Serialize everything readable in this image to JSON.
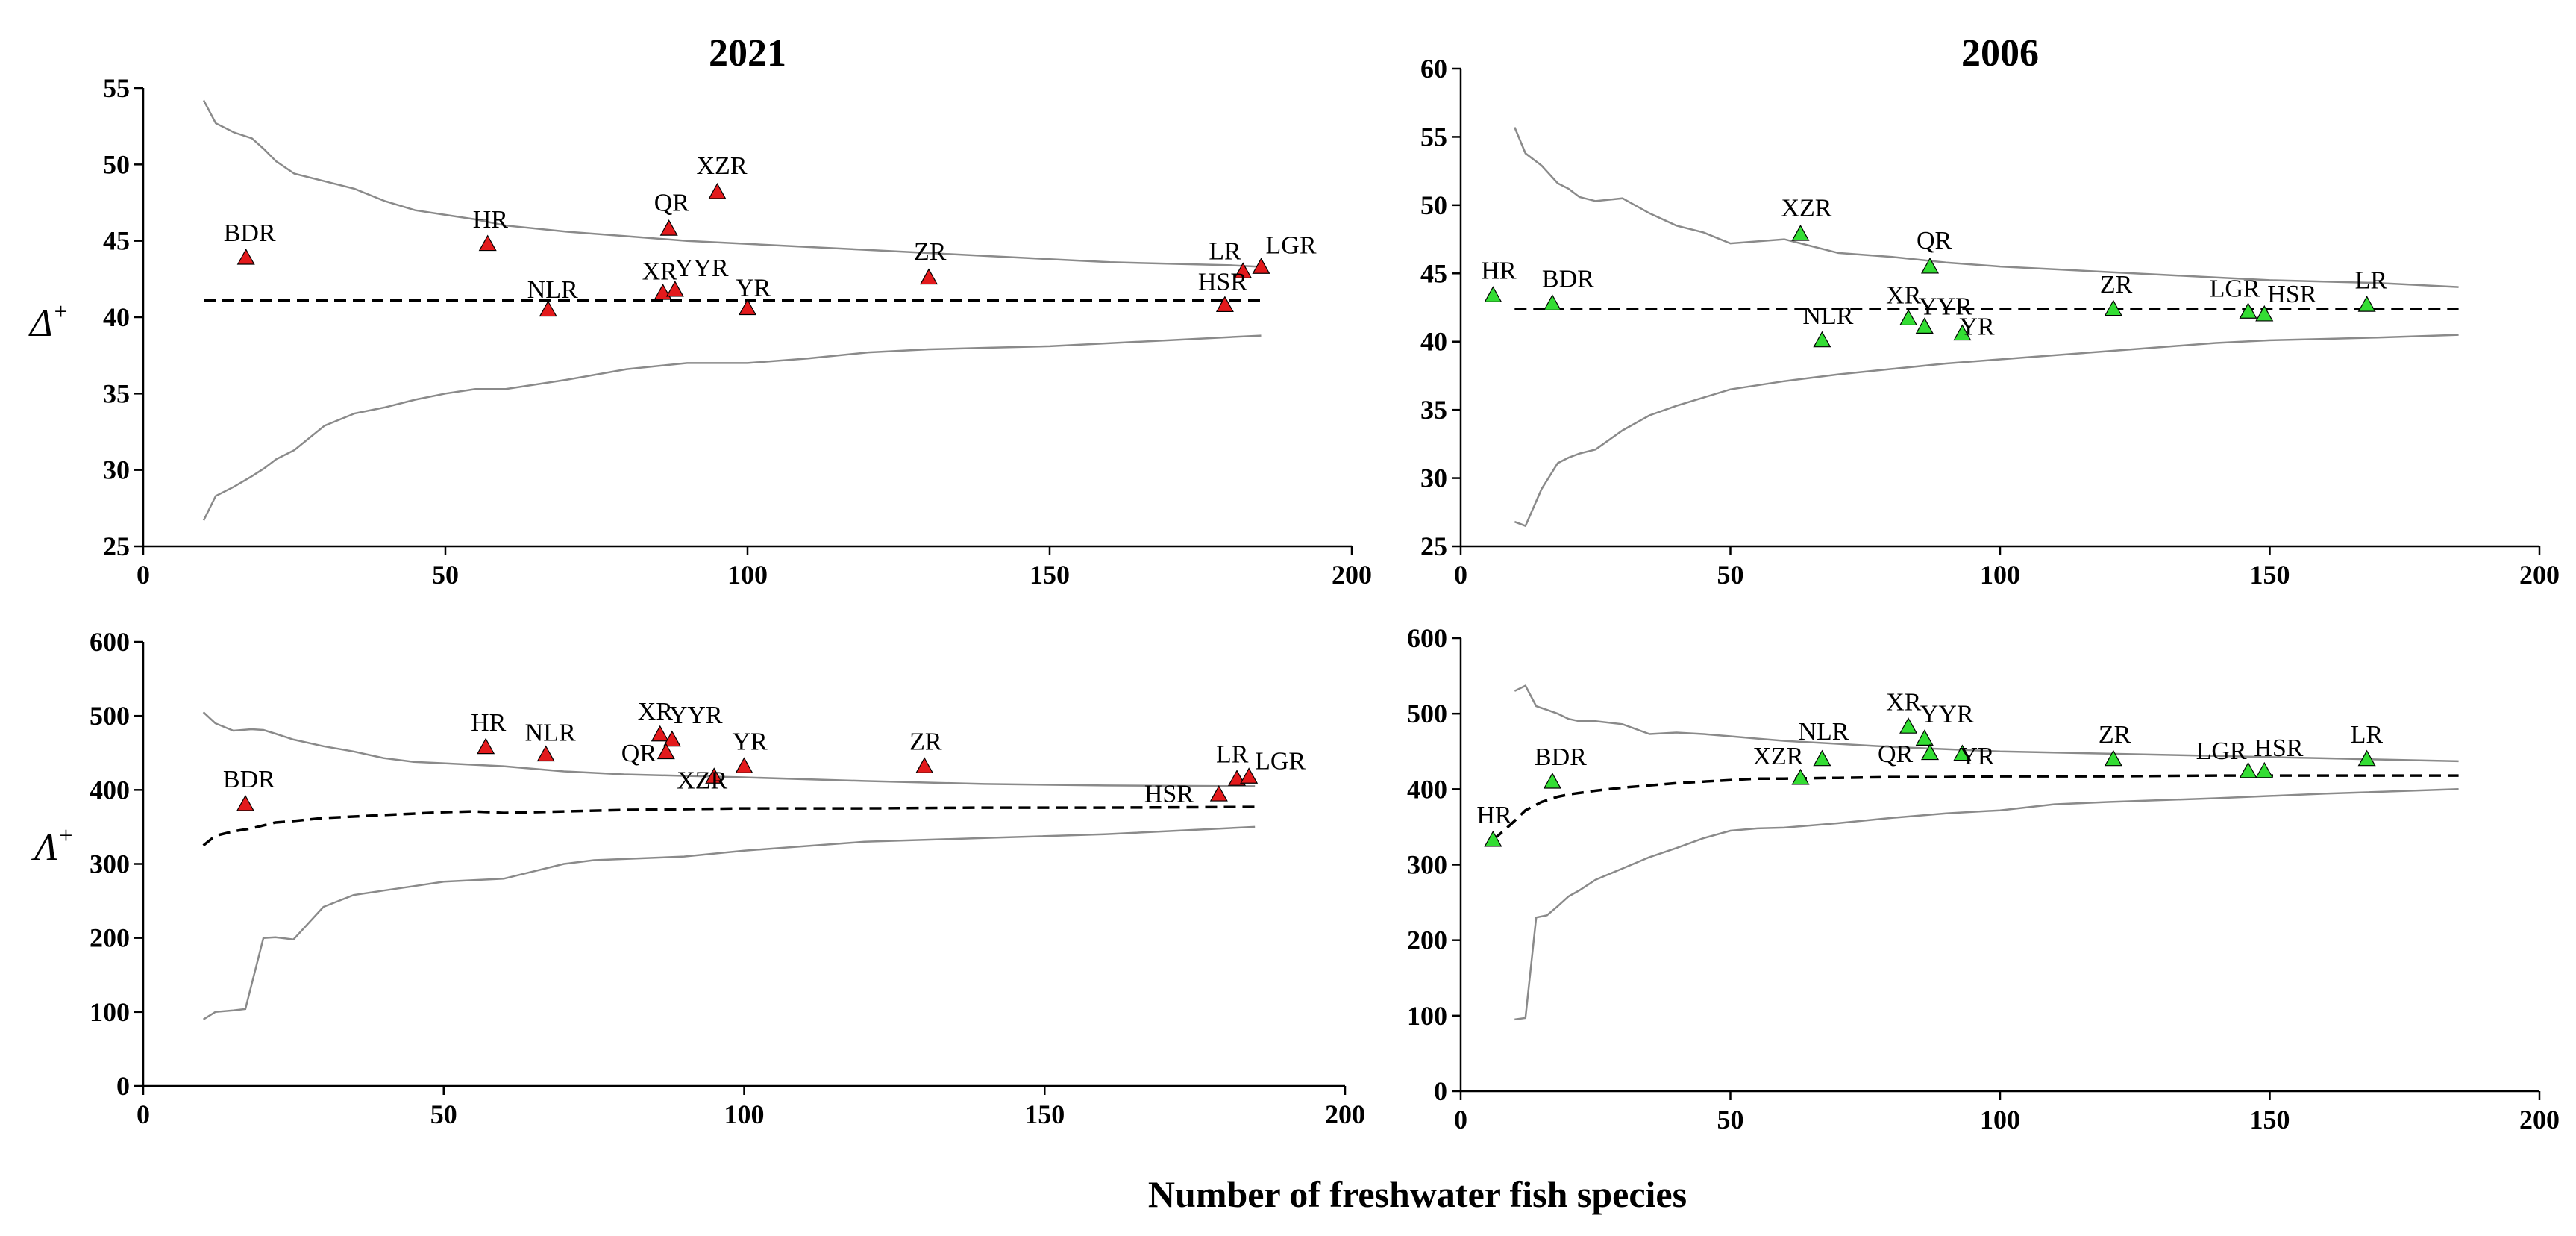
{
  "figure": {
    "xlabel": "Number of freshwater fish species",
    "row_ylabels": [
      {
        "symbol": "Δ",
        "sup": "+"
      },
      {
        "symbol": "Λ",
        "sup": "+"
      }
    ],
    "colors": {
      "2021": "#e31a1c",
      "2006": "#33dd33",
      "bounds": "#8a8a8a",
      "mean": "#000000",
      "axis": "#000000"
    }
  },
  "chart_data": [
    {
      "type": "scatter",
      "panel": "top-left",
      "title": "2021",
      "xlabel": "",
      "ylabel": "Δ+",
      "xlim": [
        0,
        200
      ],
      "ylim": [
        25,
        55
      ],
      "xticks": [
        0,
        50,
        100,
        150,
        200
      ],
      "yticks": [
        25,
        30,
        35,
        40,
        45,
        50,
        55
      ],
      "marker_color": "#e31a1c",
      "mean_line": {
        "x": [
          10,
          185
        ],
        "y": [
          41.1,
          41.1
        ]
      },
      "upper_bound": {
        "x": [
          10,
          12,
          15,
          18,
          20,
          22,
          25,
          30,
          35,
          40,
          45,
          50,
          55,
          60,
          70,
          80,
          90,
          100,
          110,
          120,
          130,
          140,
          150,
          160,
          170,
          180,
          185
        ],
        "y": [
          54.2,
          52.7,
          52.1,
          51.7,
          51.0,
          50.2,
          49.4,
          48.9,
          48.4,
          47.6,
          47.0,
          46.7,
          46.4,
          46.0,
          45.6,
          45.3,
          45.0,
          44.8,
          44.6,
          44.4,
          44.2,
          44.0,
          43.8,
          43.6,
          43.5,
          43.4,
          43.3
        ]
      },
      "lower_bound": {
        "x": [
          10,
          12,
          15,
          18,
          20,
          22,
          25,
          30,
          35,
          40,
          45,
          50,
          55,
          60,
          70,
          80,
          90,
          100,
          110,
          120,
          130,
          140,
          150,
          160,
          170,
          180,
          185
        ],
        "y": [
          26.7,
          28.3,
          28.9,
          29.6,
          30.1,
          30.7,
          31.3,
          32.9,
          33.7,
          34.1,
          34.6,
          35.0,
          35.3,
          35.3,
          35.9,
          36.6,
          37.0,
          37.0,
          37.3,
          37.7,
          37.9,
          38.0,
          38.1,
          38.3,
          38.5,
          38.7,
          38.8
        ]
      },
      "points": [
        {
          "label": "BDR",
          "x": 17,
          "y": 43.9
        },
        {
          "label": "HR",
          "x": 57,
          "y": 44.8
        },
        {
          "label": "NLR",
          "x": 67,
          "y": 40.5
        },
        {
          "label": "QR",
          "x": 87,
          "y": 45.8
        },
        {
          "label": "XZR",
          "x": 95,
          "y": 48.2
        },
        {
          "label": "XR",
          "x": 86,
          "y": 41.6
        },
        {
          "label": "YYR",
          "x": 88,
          "y": 41.8
        },
        {
          "label": "YR",
          "x": 100,
          "y": 40.6
        },
        {
          "label": "ZR",
          "x": 130,
          "y": 42.6
        },
        {
          "label": "LR",
          "x": 182,
          "y": 43.0
        },
        {
          "label": "LGR",
          "x": 185,
          "y": 43.3
        },
        {
          "label": "HSR",
          "x": 179,
          "y": 40.8
        }
      ]
    },
    {
      "type": "scatter",
      "panel": "top-right",
      "title": "2006",
      "xlabel": "",
      "ylabel": "Δ+",
      "xlim": [
        0,
        200
      ],
      "ylim": [
        25,
        60
      ],
      "xticks": [
        0,
        50,
        100,
        150,
        200
      ],
      "yticks": [
        25,
        30,
        35,
        40,
        45,
        50,
        55,
        60
      ],
      "marker_color": "#33dd33",
      "mean_line": {
        "x": [
          10,
          185
        ],
        "y": [
          42.4,
          42.4
        ]
      },
      "upper_bound": {
        "x": [
          10,
          12,
          15,
          18,
          20,
          22,
          25,
          30,
          35,
          40,
          45,
          50,
          60,
          70,
          80,
          90,
          100,
          110,
          120,
          130,
          140,
          150,
          160,
          170,
          185
        ],
        "y": [
          55.7,
          53.8,
          52.9,
          51.6,
          51.2,
          50.6,
          50.3,
          50.5,
          49.4,
          48.5,
          48.0,
          47.2,
          47.5,
          46.5,
          46.2,
          45.8,
          45.5,
          45.3,
          45.1,
          44.9,
          44.7,
          44.5,
          44.4,
          44.3,
          44.0
        ]
      },
      "lower_bound": {
        "x": [
          10,
          12,
          15,
          18,
          20,
          22,
          25,
          30,
          35,
          40,
          45,
          50,
          55,
          60,
          70,
          80,
          90,
          100,
          110,
          120,
          130,
          140,
          150,
          160,
          170,
          185
        ],
        "y": [
          26.8,
          26.5,
          29.2,
          31.1,
          31.5,
          31.8,
          32.1,
          33.5,
          34.6,
          35.3,
          35.9,
          36.5,
          36.8,
          37.1,
          37.6,
          38.0,
          38.4,
          38.7,
          39.0,
          39.3,
          39.6,
          39.9,
          40.1,
          40.2,
          40.3,
          40.5
        ]
      },
      "points": [
        {
          "label": "HR",
          "x": 6,
          "y": 43.4
        },
        {
          "label": "BDR",
          "x": 17,
          "y": 42.8
        },
        {
          "label": "XZR",
          "x": 63,
          "y": 47.9
        },
        {
          "label": "NLR",
          "x": 67,
          "y": 40.1
        },
        {
          "label": "QR",
          "x": 87,
          "y": 45.5
        },
        {
          "label": "XR",
          "x": 83,
          "y": 41.7
        },
        {
          "label": "YYR",
          "x": 86,
          "y": 41.1
        },
        {
          "label": "YR",
          "x": 93,
          "y": 40.6
        },
        {
          "label": "ZR",
          "x": 121,
          "y": 42.4
        },
        {
          "label": "LGR",
          "x": 146,
          "y": 42.2
        },
        {
          "label": "HSR",
          "x": 149,
          "y": 42.0
        },
        {
          "label": "LR",
          "x": 168,
          "y": 42.7
        }
      ]
    },
    {
      "type": "scatter",
      "panel": "bottom-left",
      "title": "",
      "xlabel": "",
      "ylabel": "Λ+",
      "xlim": [
        0,
        200
      ],
      "ylim": [
        0,
        600
      ],
      "xticks": [
        0,
        50,
        100,
        150,
        200
      ],
      "yticks": [
        0,
        100,
        200,
        300,
        400,
        500,
        600
      ],
      "marker_color": "#e31a1c",
      "mean_line": {
        "x": [
          10,
          12,
          15,
          18,
          20,
          22,
          25,
          30,
          35,
          40,
          45,
          50,
          55,
          60,
          70,
          80,
          90,
          100,
          120,
          140,
          160,
          185
        ],
        "y": [
          325,
          338,
          344,
          348,
          352,
          356,
          358,
          362,
          364,
          366,
          368,
          370,
          371,
          369,
          371,
          373,
          374,
          375,
          375,
          376,
          376,
          377
        ]
      },
      "upper_bound": {
        "x": [
          10,
          12,
          15,
          18,
          20,
          22,
          25,
          30,
          35,
          40,
          45,
          50,
          55,
          60,
          70,
          80,
          90,
          100,
          120,
          140,
          160,
          185
        ],
        "y": [
          505,
          490,
          480,
          482,
          481,
          476,
          468,
          459,
          452,
          443,
          438,
          436,
          434,
          432,
          425,
          421,
          419,
          417,
          412,
          408,
          406,
          405
        ]
      },
      "lower_bound": {
        "x": [
          10,
          12,
          15,
          17,
          20,
          22,
          25,
          30,
          35,
          40,
          45,
          50,
          55,
          60,
          70,
          75,
          90,
          100,
          120,
          140,
          160,
          185
        ],
        "y": [
          90,
          100,
          102,
          104,
          200,
          201,
          198,
          242,
          258,
          264,
          270,
          276,
          278,
          280,
          300,
          305,
          310,
          318,
          330,
          335,
          340,
          350
        ]
      },
      "points": [
        {
          "label": "BDR",
          "x": 17,
          "y": 381
        },
        {
          "label": "HR",
          "x": 57,
          "y": 458
        },
        {
          "label": "NLR",
          "x": 67,
          "y": 448
        },
        {
          "label": "XR",
          "x": 86,
          "y": 475
        },
        {
          "label": "YYR",
          "x": 88,
          "y": 468
        },
        {
          "label": "QR",
          "x": 87,
          "y": 451
        },
        {
          "label": "XZR",
          "x": 95,
          "y": 418
        },
        {
          "label": "YR",
          "x": 100,
          "y": 432
        },
        {
          "label": "ZR",
          "x": 130,
          "y": 432
        },
        {
          "label": "LR",
          "x": 182,
          "y": 415
        },
        {
          "label": "LGR",
          "x": 184,
          "y": 418
        },
        {
          "label": "HSR",
          "x": 179,
          "y": 394
        }
      ]
    },
    {
      "type": "scatter",
      "panel": "bottom-right",
      "title": "",
      "xlabel": "",
      "ylabel": "Λ+",
      "xlim": [
        0,
        200
      ],
      "ylim": [
        0,
        600
      ],
      "xticks": [
        0,
        50,
        100,
        150,
        200
      ],
      "yticks": [
        0,
        100,
        200,
        300,
        400,
        500,
        600
      ],
      "marker_color": "#33dd33",
      "mean_line": {
        "x": [
          6,
          8,
          10,
          12,
          15,
          18,
          20,
          25,
          30,
          35,
          40,
          45,
          50,
          55,
          60,
          70,
          80,
          90,
          100,
          120,
          140,
          160,
          185
        ],
        "y": [
          333,
          345,
          358,
          372,
          383,
          390,
          393,
          398,
          402,
          405,
          408,
          410,
          412,
          414,
          414,
          415,
          416,
          416,
          417,
          417,
          418,
          418,
          418
        ]
      },
      "upper_bound": {
        "x": [
          10,
          12,
          14,
          16,
          18,
          20,
          22,
          25,
          30,
          35,
          40,
          45,
          50,
          55,
          60,
          70,
          80,
          90,
          100,
          120,
          140,
          160,
          185
        ],
        "y": [
          530,
          537,
          510,
          505,
          500,
          493,
          490,
          490,
          486,
          473,
          475,
          473,
          470,
          467,
          464,
          460,
          456,
          453,
          450,
          447,
          444,
          441,
          437
        ]
      },
      "lower_bound": {
        "x": [
          10,
          12,
          14,
          16,
          18,
          20,
          22,
          25,
          30,
          35,
          40,
          45,
          50,
          55,
          60,
          70,
          80,
          90,
          100,
          110,
          120,
          140,
          160,
          185
        ],
        "y": [
          95,
          97,
          230,
          233,
          245,
          258,
          266,
          280,
          295,
          310,
          322,
          335,
          345,
          348,
          349,
          355,
          362,
          368,
          372,
          380,
          383,
          388,
          394,
          400
        ]
      },
      "points": [
        {
          "label": "HR",
          "x": 6,
          "y": 333
        },
        {
          "label": "BDR",
          "x": 17,
          "y": 410
        },
        {
          "label": "XZR",
          "x": 63,
          "y": 415
        },
        {
          "label": "NLR",
          "x": 67,
          "y": 440
        },
        {
          "label": "XR",
          "x": 83,
          "y": 483
        },
        {
          "label": "YYR",
          "x": 86,
          "y": 467
        },
        {
          "label": "QR",
          "x": 87,
          "y": 448
        },
        {
          "label": "YR",
          "x": 93,
          "y": 447
        },
        {
          "label": "ZR",
          "x": 121,
          "y": 440
        },
        {
          "label": "LGR",
          "x": 146,
          "y": 424
        },
        {
          "label": "HSR",
          "x": 149,
          "y": 424
        },
        {
          "label": "LR",
          "x": 168,
          "y": 440
        }
      ]
    }
  ]
}
